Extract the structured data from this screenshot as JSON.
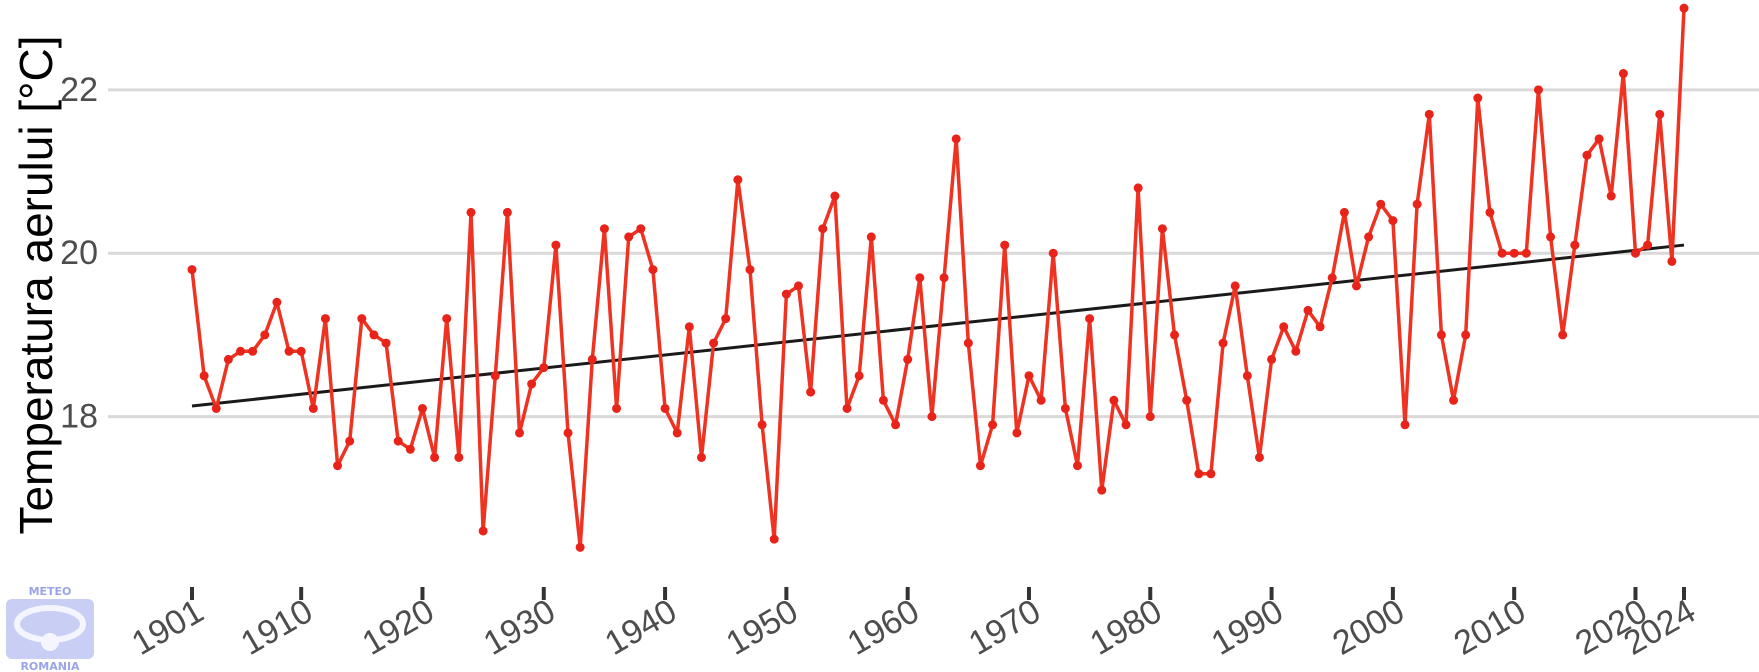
{
  "chart_data": {
    "type": "line",
    "title": "",
    "xlabel": "",
    "ylabel": "Temperatura aerului [°C]",
    "ylim": [
      16.0,
      23.1
    ],
    "xlim": [
      1901,
      2024
    ],
    "yticks": [
      18,
      20,
      22
    ],
    "xticks": [
      1901,
      1910,
      1920,
      1930,
      1940,
      1950,
      1960,
      1970,
      1980,
      1990,
      2000,
      2010,
      2020,
      2024
    ],
    "grid": "horizontal",
    "legend": "none",
    "colors": {
      "series": "#ee3322",
      "trend": "#1a1a1a"
    },
    "series": [
      {
        "x": [
          1901,
          1902,
          1903,
          1904,
          1905,
          1906,
          1907,
          1908,
          1909,
          1910,
          1911,
          1912,
          1913,
          1914,
          1915,
          1916,
          1917,
          1918,
          1919,
          1920,
          1921,
          1922,
          1923,
          1924,
          1925,
          1926,
          1927,
          1928,
          1929,
          1930,
          1931,
          1932,
          1933,
          1934,
          1935,
          1936,
          1937,
          1938,
          1939,
          1940,
          1941,
          1942,
          1943,
          1944,
          1945,
          1946,
          1947,
          1948,
          1949,
          1950,
          1951,
          1952,
          1953,
          1954,
          1955,
          1956,
          1957,
          1958,
          1959,
          1960,
          1961,
          1962,
          1963,
          1964,
          1965,
          1966,
          1967,
          1968,
          1969,
          1970,
          1971,
          1972,
          1973,
          1974,
          1975,
          1976,
          1977,
          1978,
          1979,
          1980,
          1981,
          1982,
          1983,
          1984,
          1985,
          1986,
          1987,
          1988,
          1989,
          1990,
          1991,
          1992,
          1993,
          1994,
          1995,
          1996,
          1997,
          1998,
          1999,
          2000,
          2001,
          2002,
          2003,
          2004,
          2005,
          2006,
          2007,
          2008,
          2009,
          2010,
          2011,
          2012,
          2013,
          2014,
          2015,
          2016,
          2017,
          2018,
          2019,
          2020,
          2021,
          2022,
          2023,
          2024
        ],
        "values": [
          19.8,
          18.5,
          18.1,
          18.7,
          18.8,
          18.8,
          19.0,
          19.4,
          18.8,
          18.8,
          18.1,
          19.2,
          17.4,
          17.7,
          19.2,
          19.0,
          18.9,
          17.7,
          17.6,
          18.1,
          17.5,
          19.2,
          17.5,
          20.5,
          16.6,
          18.5,
          20.5,
          17.8,
          18.4,
          18.6,
          20.1,
          17.8,
          16.4,
          18.7,
          20.3,
          18.1,
          20.2,
          20.3,
          19.8,
          18.1,
          17.8,
          19.1,
          17.5,
          18.9,
          19.2,
          20.9,
          19.8,
          17.9,
          16.5,
          19.5,
          19.6,
          18.3,
          20.3,
          20.7,
          18.1,
          18.5,
          20.2,
          18.2,
          17.9,
          18.7,
          19.7,
          18.0,
          19.7,
          21.4,
          18.9,
          17.4,
          17.9,
          20.1,
          17.8,
          18.5,
          18.2,
          20.0,
          18.1,
          17.4,
          19.2,
          17.1,
          18.2,
          17.9,
          20.8,
          18.0,
          20.3,
          19.0,
          18.2,
          17.3,
          17.3,
          18.9,
          19.6,
          18.5,
          17.5,
          18.7,
          19.1,
          18.8,
          19.3,
          19.1,
          19.7,
          20.5,
          19.6,
          20.2,
          20.6,
          20.4,
          17.9,
          20.6,
          21.7,
          19.0,
          18.2,
          19.0,
          21.9,
          20.5,
          20.0,
          20.0,
          20.0,
          22.0,
          20.2,
          19.0,
          20.1,
          21.2,
          21.4,
          20.7,
          22.2,
          20.0,
          20.1,
          21.7,
          19.9,
          23.0
        ]
      }
    ],
    "trend": {
      "x": [
        1901,
        2024
      ],
      "values": [
        18.13,
        20.1
      ]
    }
  },
  "logo": {
    "top_text": "METEO",
    "bottom_text": "ROMANIA"
  }
}
